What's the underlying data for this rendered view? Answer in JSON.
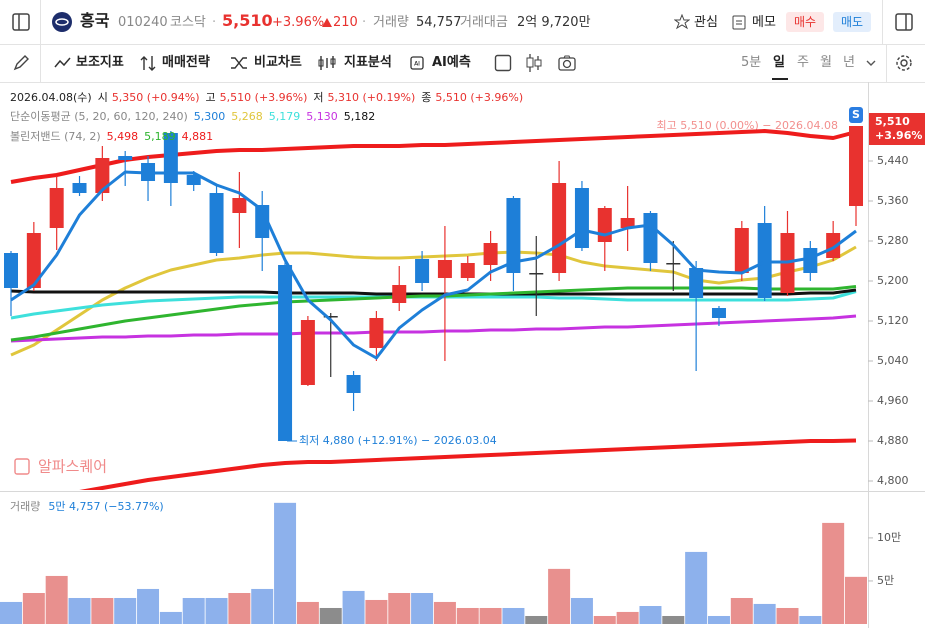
{
  "header": {
    "name": "흥국",
    "code": "010240",
    "market": "코스닥",
    "price": "5,510",
    "change_pct": "+3.96%",
    "change": "210",
    "volume_label": "거래량",
    "volume": "54,757",
    "amount_label": "거래대금",
    "amount": "2억 9,720만",
    "buttons": [
      "관심",
      "메모",
      "매수",
      "매도"
    ]
  },
  "toolbar": {
    "tools": [
      "보조지표",
      "매매전략",
      "비교차트",
      "지표분석",
      "AI예측"
    ],
    "periods": [
      "5분",
      "일",
      "주",
      "월",
      "년"
    ]
  },
  "chart_data": [
    {
      "type": "candlestick",
      "date": "2026.04.08(수)",
      "ohlc_info": [
        {
          "label": "시",
          "value": "5,350 (+0.94%)"
        },
        {
          "label": "고",
          "value": "5,510 (+3.96%)"
        },
        {
          "label": "저",
          "value": "5,310 (+0.19%)"
        },
        {
          "label": "종",
          "value": "5,510 (+3.96%)"
        }
      ],
      "open": [
        5256,
        5186,
        5306,
        5396,
        5376,
        5450,
        5436,
        5496,
        5412,
        5376,
        5336,
        5352,
        5232,
        4992,
        5130,
        5012,
        5066,
        5156,
        5244,
        5206,
        5206,
        5232,
        5366,
        5216,
        5216,
        5386,
        5278,
        5306,
        5336,
        5236,
        5226,
        5146,
        5216,
        5316,
        5176,
        5266,
        5246,
        5350
      ],
      "high": [
        5260,
        5318,
        5410,
        5410,
        5470,
        5460,
        5450,
        5500,
        5420,
        5390,
        5418,
        5380,
        5240,
        5130,
        5136,
        5020,
        5140,
        5230,
        5260,
        5310,
        5250,
        5300,
        5370,
        5290,
        5440,
        5400,
        5350,
        5390,
        5340,
        5280,
        5240,
        5150,
        5320,
        5350,
        5340,
        5280,
        5320,
        5510
      ],
      "low": [
        5130,
        5180,
        5262,
        5370,
        5360,
        5390,
        5360,
        5350,
        5380,
        5250,
        5266,
        5220,
        4880,
        4990,
        5008,
        4940,
        5040,
        5140,
        5180,
        5040,
        5200,
        5200,
        5180,
        5130,
        5200,
        5260,
        5220,
        5260,
        5220,
        5180,
        5020,
        5110,
        5200,
        5160,
        5170,
        5200,
        5240,
        5310
      ],
      "close": [
        5186,
        5296,
        5386,
        5376,
        5446,
        5442,
        5400,
        5396,
        5392,
        5256,
        5366,
        5286,
        4880,
        5122,
        5130,
        4976,
        5126,
        5192,
        5196,
        5242,
        5236,
        5276,
        5216,
        5216,
        5396,
        5266,
        5346,
        5326,
        5236,
        5236,
        5166,
        5126,
        5306,
        5166,
        5296,
        5216,
        5296,
        5510
      ],
      "up_color": "#e8322f",
      "down_color": "#1e7fd8",
      "flat_color": "#333333",
      "ylim": [
        4782,
        5572
      ],
      "yticks": [
        {
          "value": 4800,
          "label": "4,800"
        },
        {
          "value": 4880,
          "label": "4,880"
        },
        {
          "value": 4960,
          "label": "4,960"
        },
        {
          "value": 5040,
          "label": "5,040"
        },
        {
          "value": 5120,
          "label": "5,120"
        },
        {
          "value": 5200,
          "label": "5,200"
        },
        {
          "value": 5280,
          "label": "5,280"
        },
        {
          "value": 5360,
          "label": "5,360"
        },
        {
          "value": 5440,
          "label": "5,440"
        }
      ],
      "overlays": [
        {
          "name": "단순이동평균 (5, 20, 60, 120, 240)",
          "series": [
            {
              "color": "#1e7fd8",
              "last_value_label": "5,300",
              "values": [
                5162,
                5192,
                5252,
                5332,
                5382,
                5418,
                5416,
                5416,
                5416,
                5392,
                5376,
                5342,
                5242,
                5162,
                5122,
                5072,
                5046,
                5106,
                5142,
                5172,
                5182,
                5218,
                5238,
                5246,
                5272,
                5302,
                5292,
                5306,
                5312,
                5272,
                5222,
                5218,
                5216,
                5238,
                5238,
                5246,
                5266,
                5300
              ]
            },
            {
              "color": "#e0c63c",
              "last_value_label": "5,268",
              "values": [
                5052,
                5072,
                5102,
                5132,
                5162,
                5186,
                5206,
                5222,
                5232,
                5242,
                5246,
                5252,
                5256,
                5256,
                5252,
                5248,
                5246,
                5246,
                5248,
                5250,
                5252,
                5256,
                5258,
                5256,
                5252,
                5238,
                5230,
                5226,
                5222,
                5218,
                5202,
                5196,
                5202,
                5206,
                5218,
                5228,
                5242,
                5268
              ]
            },
            {
              "color": "#3ee0dc",
              "last_value_label": "5,179",
              "values": [
                5126,
                5134,
                5140,
                5146,
                5152,
                5156,
                5160,
                5162,
                5164,
                5166,
                5168,
                5168,
                5168,
                5168,
                5168,
                5168,
                5168,
                5168,
                5168,
                5168,
                5168,
                5168,
                5168,
                5168,
                5166,
                5166,
                5164,
                5162,
                5162,
                5162,
                5162,
                5162,
                5162,
                5162,
                5162,
                5164,
                5166,
                5179
              ]
            },
            {
              "color": "#c632e0",
              "last_value_label": "5,130",
              "values": [
                5080,
                5082,
                5084,
                5086,
                5088,
                5088,
                5090,
                5090,
                5092,
                5092,
                5094,
                5094,
                5094,
                5096,
                5096,
                5096,
                5098,
                5098,
                5098,
                5100,
                5100,
                5102,
                5102,
                5104,
                5104,
                5106,
                5108,
                5108,
                5110,
                5112,
                5114,
                5116,
                5118,
                5120,
                5122,
                5124,
                5126,
                5130
              ]
            },
            {
              "color": "#111111",
              "last_value_label": "5,182",
              "values": [
                5180,
                5178,
                5178,
                5178,
                5178,
                5178,
                5178,
                5178,
                5178,
                5178,
                5178,
                5178,
                5176,
                5176,
                5176,
                5176,
                5174,
                5174,
                5174,
                5174,
                5174,
                5174,
                5174,
                5174,
                5174,
                5174,
                5174,
                5174,
                5174,
                5174,
                5174,
                5174,
                5174,
                5174,
                5174,
                5176,
                5176,
                5182
              ]
            }
          ]
        },
        {
          "name": "볼린저밴드 (74, 2)",
          "series": [
            {
              "color": "#ee1c1c",
              "last_value_label": "5,498",
              "values": [
                5398,
                5406,
                5412,
                5422,
                5432,
                5442,
                5448,
                5452,
                5456,
                5460,
                5462,
                5462,
                5464,
                5466,
                5468,
                5470,
                5470,
                5470,
                5472,
                5472,
                5474,
                5476,
                5478,
                5480,
                5482,
                5484,
                5486,
                5488,
                5490,
                5492,
                5494,
                5496,
                5498,
                5500,
                5496,
                5490,
                5486,
                5498
              ]
            },
            {
              "color": "#2fb52f",
              "last_value_label": "5,189",
              "values": [
                5082,
                5088,
                5096,
                5104,
                5112,
                5120,
                5126,
                5132,
                5138,
                5144,
                5150,
                5154,
                5158,
                5160,
                5162,
                5164,
                5166,
                5168,
                5170,
                5170,
                5172,
                5174,
                5176,
                5178,
                5180,
                5182,
                5184,
                5186,
                5186,
                5186,
                5186,
                5186,
                5186,
                5184,
                5184,
                5184,
                5184,
                5189
              ]
            },
            {
              "color": "#ee1c1c",
              "last_value_label": "4,881",
              "values": [
                4752,
                4762,
                4770,
                4778,
                4786,
                4794,
                4802,
                4808,
                4814,
                4820,
                4826,
                4832,
                4836,
                4838,
                4838,
                4840,
                4842,
                4844,
                4846,
                4848,
                4850,
                4852,
                4854,
                4856,
                4858,
                4860,
                4862,
                4864,
                4866,
                4868,
                4870,
                4872,
                4874,
                4876,
                4878,
                4880,
                4880,
                4881
              ]
            }
          ]
        }
      ],
      "last_price_label": "5,510",
      "last_change_label": "+3.96%",
      "high_annotation": "최고 5,510 (0.00%) − 2026.04.08",
      "low_annotation": "최저 4,880 (+12.91%) − 2026.03.04",
      "badge": "S",
      "watermark": "알파스퀘어"
    },
    {
      "type": "bar",
      "title": "거래량",
      "value_label": "5만 4,757 (−53.77%)",
      "values": [
        25600,
        36000,
        55800,
        30200,
        30200,
        30200,
        40700,
        14000,
        30200,
        30200,
        36000,
        40700,
        140700,
        25600,
        18600,
        38400,
        27900,
        36000,
        36000,
        25600,
        18600,
        18600,
        18600,
        9300,
        64000,
        30200,
        9300,
        14000,
        20900,
        9300,
        83700,
        9300,
        30200,
        23300,
        18600,
        9300,
        117400,
        54757
      ],
      "up_color": "#e8908e",
      "down_color": "#8db1ec",
      "flat_color": "#8c8c8c",
      "ylim": [
        0,
        144000
      ],
      "yticks": [
        {
          "value": 50000,
          "label": "5만"
        },
        {
          "value": 100000,
          "label": "10만"
        }
      ]
    }
  ]
}
